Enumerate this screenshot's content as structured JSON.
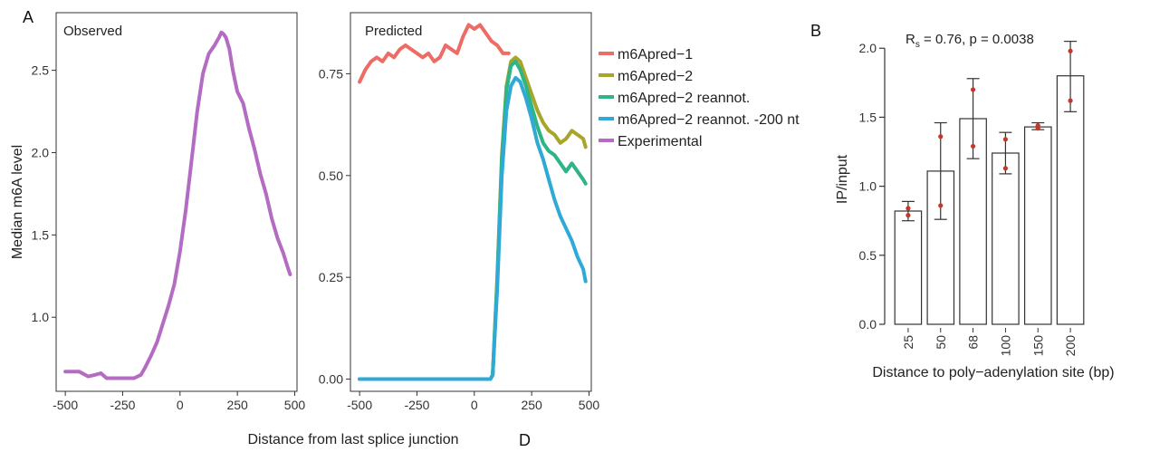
{
  "panel_letters": {
    "a": "A",
    "b": "B",
    "d": "D"
  },
  "chart_data": [
    {
      "type": "line",
      "panel_title": "Observed",
      "ylabel": "Median m6A level",
      "xlabel": "Distance from last splice junction",
      "xlim": [
        -540,
        510
      ],
      "ylim": [
        0.55,
        2.85
      ],
      "xticks": [
        -500,
        -250,
        0,
        250,
        500
      ],
      "xtick_labels": [
        "-500",
        "-250",
        "0",
        "250",
        "500"
      ],
      "yticks": [
        1.0,
        1.5,
        2.0,
        2.5
      ],
      "ytick_labels": [
        "1.0",
        "1.5",
        "2.0",
        "2.5"
      ],
      "series": [
        {
          "name": "Experimental",
          "color": "#b36cc2",
          "x": [
            -500,
            -440,
            -400,
            -370,
            -345,
            -320,
            -300,
            -250,
            -200,
            -170,
            -150,
            -125,
            -100,
            -75,
            -50,
            -25,
            0,
            25,
            50,
            75,
            100,
            125,
            150,
            170,
            180,
            190,
            200,
            215,
            230,
            250,
            275,
            300,
            325,
            350,
            375,
            400,
            425,
            450,
            470,
            480
          ],
          "values": [
            0.67,
            0.67,
            0.64,
            0.65,
            0.66,
            0.63,
            0.63,
            0.63,
            0.63,
            0.65,
            0.7,
            0.77,
            0.85,
            0.96,
            1.07,
            1.2,
            1.4,
            1.65,
            1.95,
            2.25,
            2.48,
            2.6,
            2.65,
            2.7,
            2.73,
            2.72,
            2.7,
            2.63,
            2.5,
            2.37,
            2.3,
            2.15,
            2.02,
            1.87,
            1.75,
            1.6,
            1.48,
            1.39,
            1.3,
            1.26
          ]
        }
      ]
    },
    {
      "type": "line",
      "panel_title": "Predicted",
      "xlim": [
        -540,
        510
      ],
      "ylim": [
        -0.03,
        0.9
      ],
      "xticks": [
        -500,
        -250,
        0,
        250,
        500
      ],
      "xtick_labels": [
        "-500",
        "-250",
        "0",
        "250",
        "500"
      ],
      "yticks": [
        0.0,
        0.25,
        0.5,
        0.75
      ],
      "ytick_labels": [
        "0.00",
        "0.25",
        "0.50",
        "0.75"
      ],
      "legend": "right",
      "series": [
        {
          "name": "m6Apred−1",
          "color": "#ee6b66",
          "x": [
            -500,
            -475,
            -450,
            -425,
            -400,
            -375,
            -350,
            -325,
            -300,
            -275,
            -250,
            -225,
            -200,
            -175,
            -150,
            -125,
            -100,
            -75,
            -50,
            -25,
            0,
            25,
            50,
            75,
            100,
            125,
            150
          ],
          "values": [
            0.73,
            0.76,
            0.78,
            0.79,
            0.78,
            0.8,
            0.79,
            0.81,
            0.82,
            0.81,
            0.8,
            0.79,
            0.8,
            0.78,
            0.79,
            0.82,
            0.81,
            0.8,
            0.84,
            0.87,
            0.86,
            0.87,
            0.85,
            0.83,
            0.82,
            0.8,
            0.8
          ]
        },
        {
          "name": "m6Apred−2",
          "color": "#a7a62a",
          "x": [
            -500,
            70,
            80,
            100,
            120,
            140,
            160,
            180,
            200,
            225,
            250,
            275,
            300,
            325,
            350,
            375,
            400,
            425,
            450,
            475,
            485
          ],
          "values": [
            0.0,
            0.0,
            0.01,
            0.25,
            0.55,
            0.72,
            0.78,
            0.79,
            0.78,
            0.74,
            0.7,
            0.66,
            0.63,
            0.61,
            0.6,
            0.58,
            0.59,
            0.61,
            0.6,
            0.59,
            0.57
          ]
        },
        {
          "name": "m6Apred−2 reannot.",
          "color": "#2db487",
          "x": [
            -500,
            70,
            80,
            100,
            120,
            140,
            160,
            180,
            200,
            225,
            250,
            275,
            300,
            325,
            350,
            375,
            400,
            425,
            450,
            475,
            485
          ],
          "values": [
            0.0,
            0.0,
            0.01,
            0.24,
            0.54,
            0.71,
            0.77,
            0.78,
            0.76,
            0.72,
            0.67,
            0.62,
            0.58,
            0.56,
            0.55,
            0.53,
            0.51,
            0.53,
            0.51,
            0.49,
            0.48
          ]
        },
        {
          "name": "m6Apred−2 reannot. -200 nt",
          "color": "#2faad6",
          "x": [
            -500,
            70,
            80,
            100,
            120,
            140,
            160,
            180,
            200,
            225,
            250,
            275,
            300,
            325,
            350,
            375,
            400,
            425,
            450,
            475,
            485
          ],
          "values": [
            0.0,
            0.0,
            0.01,
            0.22,
            0.5,
            0.66,
            0.72,
            0.74,
            0.73,
            0.69,
            0.64,
            0.58,
            0.54,
            0.49,
            0.44,
            0.4,
            0.37,
            0.34,
            0.3,
            0.27,
            0.24
          ]
        },
        {
          "name": "Experimental",
          "color": "#b36cc2",
          "x": [],
          "values": []
        }
      ]
    },
    {
      "type": "bar",
      "annotation_main": "R",
      "annotation_sub": "s",
      "annotation_rest": " = 0.76, p = 0.0038",
      "ylabel": "IP/input",
      "xlabel": "Distance to poly−adenylation site (bp)",
      "categories": [
        "25",
        "50",
        "68",
        "100",
        "150",
        "200"
      ],
      "values": [
        0.82,
        1.11,
        1.49,
        1.24,
        1.43,
        1.8
      ],
      "error_low": [
        0.75,
        0.76,
        1.2,
        1.09,
        1.41,
        1.54
      ],
      "error_high": [
        0.89,
        1.46,
        1.78,
        1.39,
        1.46,
        2.05
      ],
      "points": [
        [
          0.84,
          0.79
        ],
        [
          1.36,
          0.86
        ],
        [
          1.7,
          1.29
        ],
        [
          1.34,
          1.13
        ],
        [
          1.42,
          1.44
        ],
        [
          1.98,
          1.62
        ]
      ],
      "point_color": "#c0392b",
      "ylim": [
        0,
        2.1
      ],
      "yticks": [
        0.0,
        0.5,
        1.0,
        1.5,
        2.0
      ],
      "ytick_labels": [
        "0.0",
        "0.5",
        "1.0",
        "1.5",
        "2.0"
      ]
    }
  ]
}
